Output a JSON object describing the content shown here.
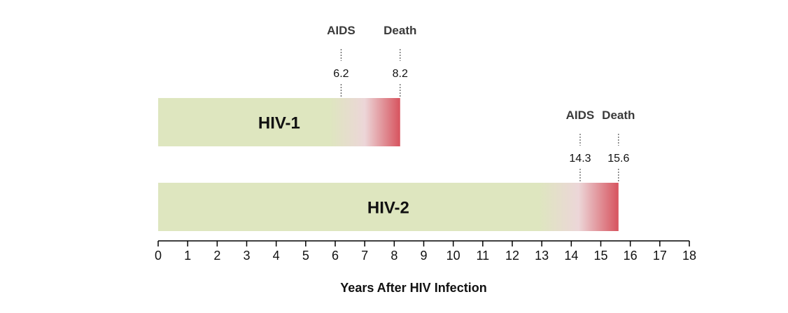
{
  "chart_data": {
    "type": "bar",
    "orientation": "horizontal",
    "xlabel": "Years After HIV Infection",
    "xlim": [
      0,
      18
    ],
    "xticks": [
      0,
      1,
      2,
      3,
      4,
      5,
      6,
      7,
      8,
      9,
      10,
      11,
      12,
      13,
      14,
      15,
      16,
      17,
      18
    ],
    "grid": false,
    "categories": [
      "HIV-1",
      "HIV-2"
    ],
    "values": [
      8.2,
      15.6
    ],
    "events": [
      {
        "bar": "HIV-1",
        "name": "AIDS",
        "value": 6.2,
        "value_label": "6.2"
      },
      {
        "bar": "HIV-1",
        "name": "Death",
        "value": 8.2,
        "value_label": "8.2"
      },
      {
        "bar": "HIV-2",
        "name": "AIDS",
        "value": 14.3,
        "value_label": "14.3"
      },
      {
        "bar": "HIV-2",
        "name": "Death",
        "value": 15.6,
        "value_label": "15.6"
      }
    ],
    "fade_start": [
      5.8,
      12.9
    ]
  },
  "colors": {
    "bar_base": "#dee6bf",
    "bar_mid": "#ecd6d8",
    "bar_end": "#d7535e"
  }
}
